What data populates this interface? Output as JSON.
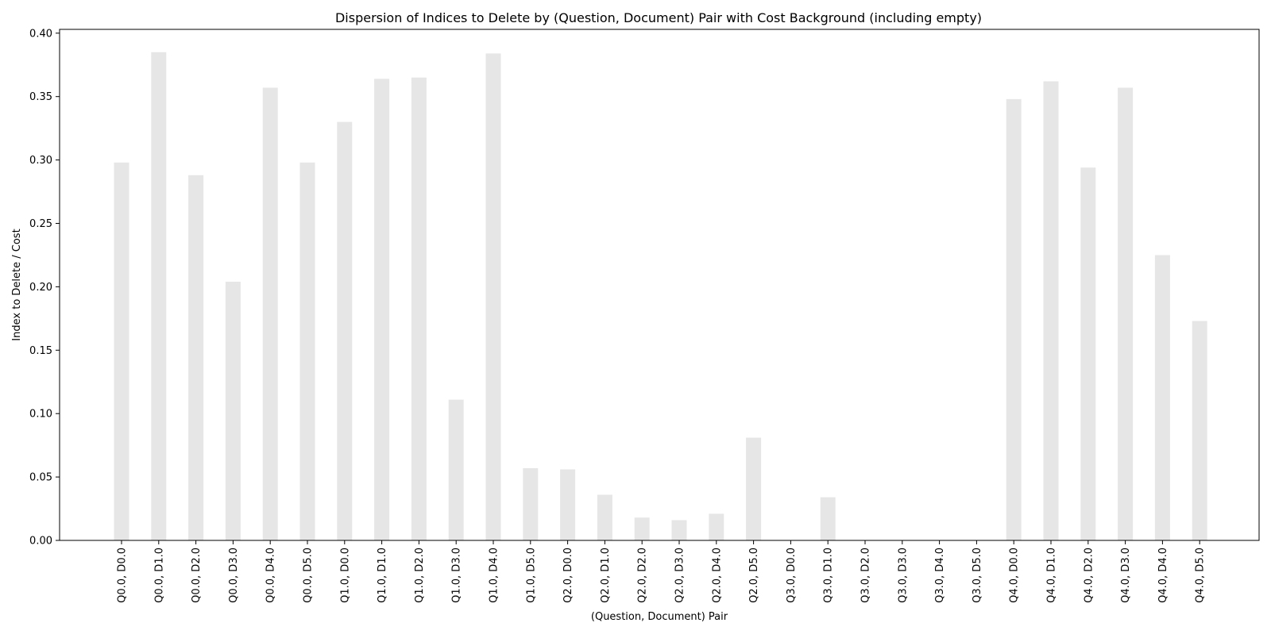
{
  "chart_data": {
    "type": "bar",
    "title": "Dispersion of Indices to Delete by (Question, Document) Pair with Cost Background (including empty)",
    "xlabel": "(Question, Document) Pair",
    "ylabel": "Index to Delete / Cost",
    "ylim": [
      0,
      0.403
    ],
    "yticks": [
      0.0,
      0.05,
      0.1,
      0.15,
      0.2,
      0.25,
      0.3,
      0.35,
      0.4
    ],
    "ytick_labels": [
      "0.00",
      "0.05",
      "0.10",
      "0.15",
      "0.20",
      "0.25",
      "0.30",
      "0.35",
      "0.40"
    ],
    "grid": false,
    "bar_color": "#e6e6e6",
    "categories": [
      "Q0.0, D0.0",
      "Q0.0, D1.0",
      "Q0.0, D2.0",
      "Q0.0, D3.0",
      "Q0.0, D4.0",
      "Q0.0, D5.0",
      "Q1.0, D0.0",
      "Q1.0, D1.0",
      "Q1.0, D2.0",
      "Q1.0, D3.0",
      "Q1.0, D4.0",
      "Q1.0, D5.0",
      "Q2.0, D0.0",
      "Q2.0, D1.0",
      "Q2.0, D2.0",
      "Q2.0, D3.0",
      "Q2.0, D4.0",
      "Q2.0, D5.0",
      "Q3.0, D0.0",
      "Q3.0, D1.0",
      "Q3.0, D2.0",
      "Q3.0, D3.0",
      "Q3.0, D4.0",
      "Q3.0, D5.0",
      "Q4.0, D0.0",
      "Q4.0, D1.0",
      "Q4.0, D2.0",
      "Q4.0, D3.0",
      "Q4.0, D4.0",
      "Q4.0, D5.0"
    ],
    "values": [
      0.298,
      0.385,
      0.288,
      0.204,
      0.357,
      0.298,
      0.33,
      0.364,
      0.365,
      0.111,
      0.384,
      0.057,
      0.056,
      0.036,
      0.018,
      0.016,
      0.021,
      0.081,
      0.0,
      0.034,
      0.0,
      0.0,
      0.0,
      0.0,
      0.348,
      0.362,
      0.294,
      0.357,
      0.225,
      0.173
    ]
  }
}
